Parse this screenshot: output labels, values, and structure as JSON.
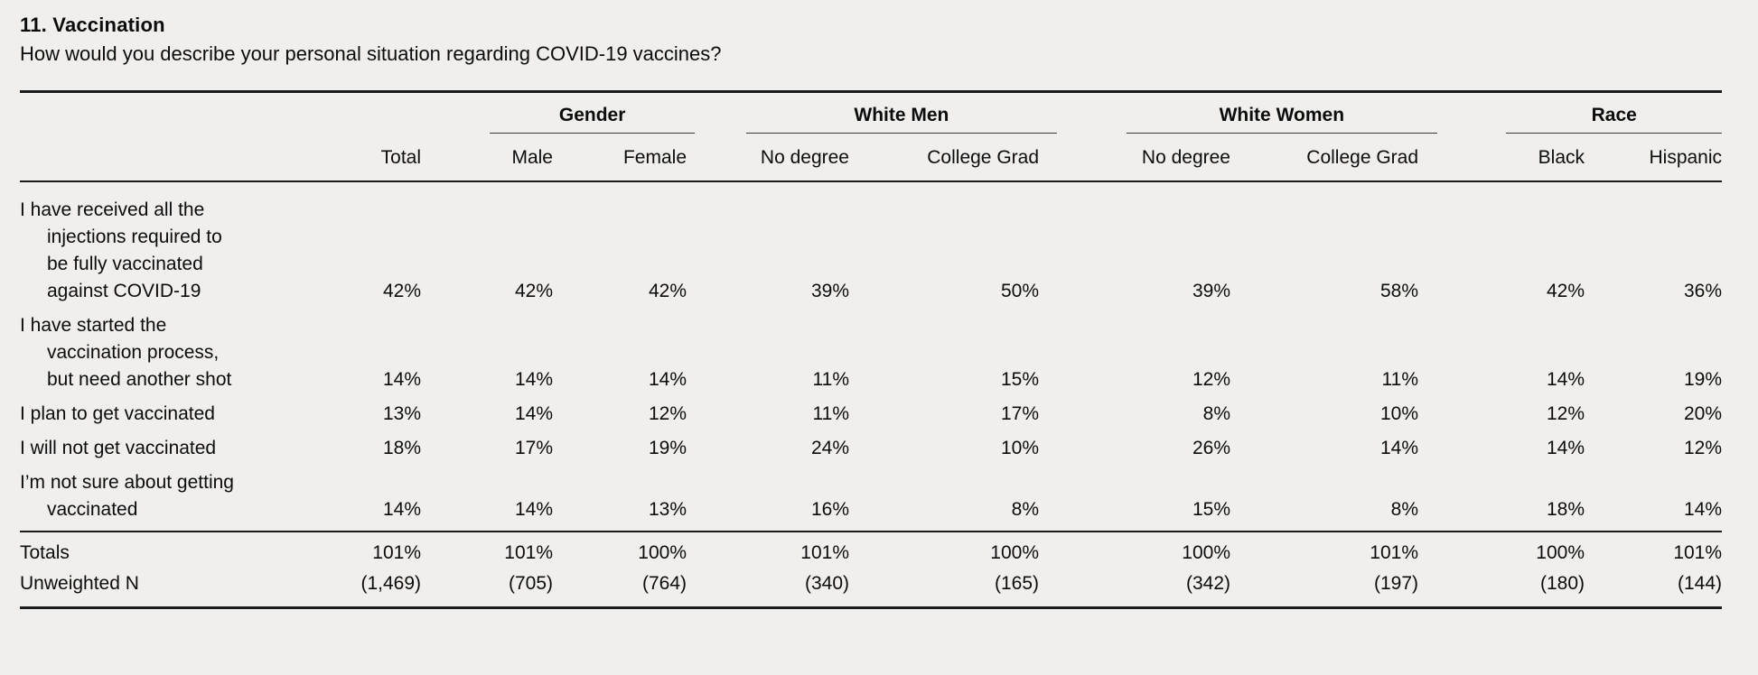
{
  "page": {
    "title": "11. Vaccination",
    "question": "How would you describe your personal situation regarding COVID-19 vaccines?"
  },
  "colors": {
    "background": "#f0efed",
    "text": "#0c0c0c",
    "rule_heavy": "#1b1b1b",
    "rule_light": "#3a3a3a"
  },
  "table": {
    "group_headers": [
      {
        "label": "Gender"
      },
      {
        "label": "White Men"
      },
      {
        "label": "White Women"
      },
      {
        "label": "Race"
      }
    ],
    "column_headers": [
      "Total",
      "Male",
      "Female",
      "No degree",
      "College Grad",
      "No degree",
      "College Grad",
      "Black",
      "Hispanic"
    ],
    "rows": [
      {
        "label": "I have received all the\ninjections required to\nbe fully vaccinated\nagainst COVID-19",
        "values": [
          "42%",
          "42%",
          "42%",
          "39%",
          "50%",
          "39%",
          "58%",
          "42%",
          "36%"
        ]
      },
      {
        "label": "I have started the\nvaccination process,\nbut need another shot",
        "values": [
          "14%",
          "14%",
          "14%",
          "11%",
          "15%",
          "12%",
          "11%",
          "14%",
          "19%"
        ]
      },
      {
        "label": "I plan to get vaccinated",
        "values": [
          "13%",
          "14%",
          "12%",
          "11%",
          "17%",
          "8%",
          "10%",
          "12%",
          "20%"
        ]
      },
      {
        "label": "I will not get vaccinated",
        "values": [
          "18%",
          "17%",
          "19%",
          "24%",
          "10%",
          "26%",
          "14%",
          "14%",
          "12%"
        ]
      },
      {
        "label": "I’m not sure about getting\nvaccinated",
        "values": [
          "14%",
          "14%",
          "13%",
          "16%",
          "8%",
          "15%",
          "8%",
          "18%",
          "14%"
        ]
      }
    ],
    "totals": {
      "label": "Totals",
      "values": [
        "101%",
        "101%",
        "100%",
        "101%",
        "100%",
        "100%",
        "101%",
        "100%",
        "101%"
      ]
    },
    "unweighted": {
      "label": "Unweighted N",
      "values": [
        "(1,469)",
        "(705)",
        "(764)",
        "(340)",
        "(165)",
        "(342)",
        "(197)",
        "(180)",
        "(144)"
      ]
    }
  }
}
